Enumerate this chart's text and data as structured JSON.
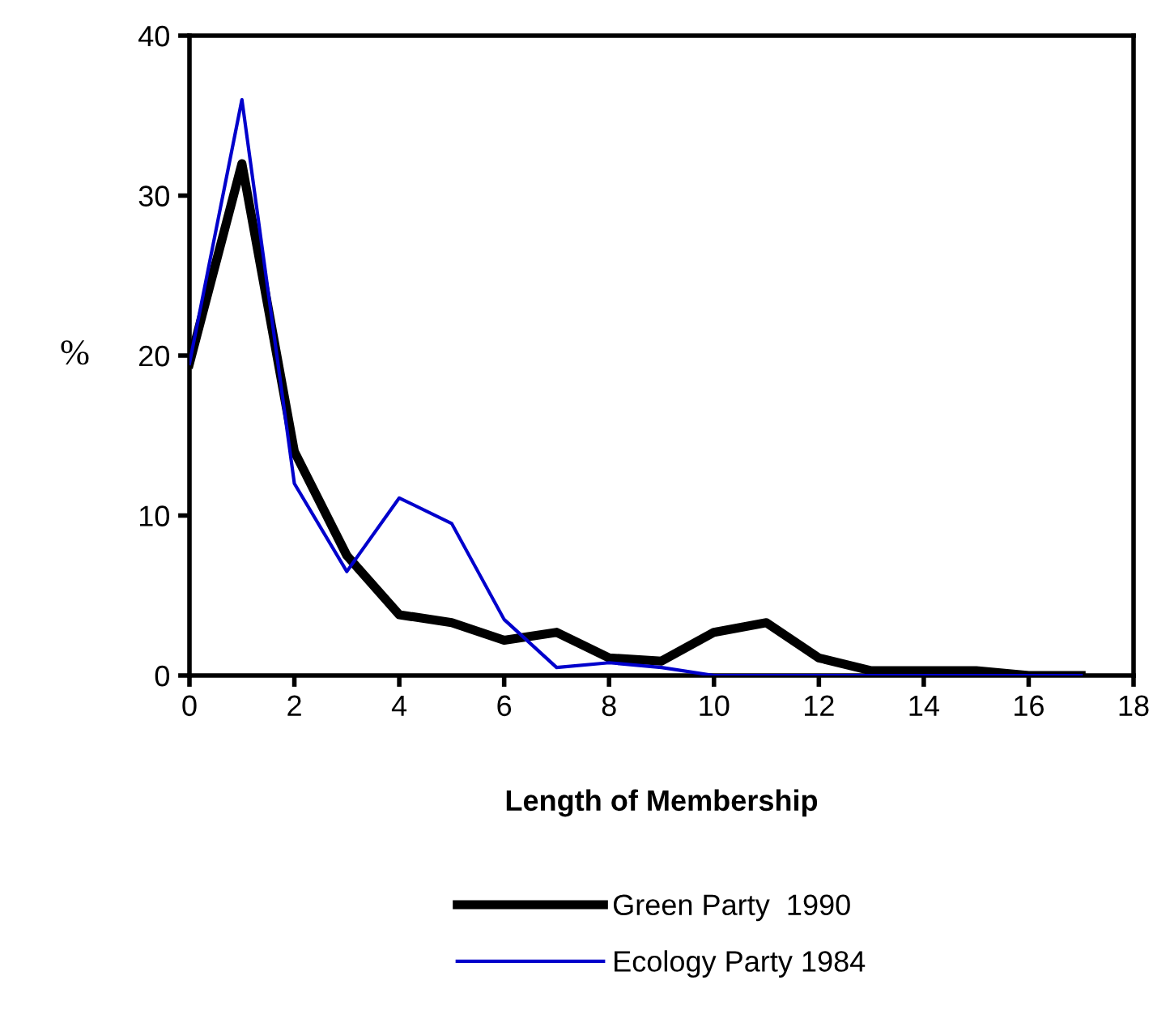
{
  "chart_data": {
    "type": "line",
    "xlabel": "Length of Membership",
    "ylabel": "%",
    "x": [
      0,
      1,
      2,
      3,
      4,
      5,
      6,
      7,
      8,
      9,
      10,
      11,
      12,
      13,
      14,
      15,
      16,
      17
    ],
    "series": [
      {
        "name": "Green Party  1990",
        "color": "#000000",
        "values": [
          19.5,
          32,
          14,
          7.5,
          3.8,
          3.3,
          2.2,
          2.7,
          1.1,
          0.9,
          2.7,
          3.3,
          1.1,
          0.3,
          0.3,
          0.3,
          0,
          0
        ]
      },
      {
        "name": "Ecology Party 1984",
        "color": "#0000cc",
        "values": [
          19.5,
          36,
          12,
          6.5,
          11.1,
          9.5,
          3.5,
          0.5,
          0.8,
          0.5,
          0,
          0,
          0,
          0,
          0,
          0,
          0,
          0
        ]
      }
    ],
    "xlim": [
      0,
      18
    ],
    "xticks": [
      0,
      2,
      4,
      6,
      8,
      10,
      12,
      14,
      16,
      18
    ],
    "ylim": [
      0,
      40
    ],
    "yticks": [
      0,
      10,
      20,
      30,
      40
    ],
    "grid": false,
    "legend": "bottom",
    "marker": "none",
    "line_style": "solid"
  }
}
